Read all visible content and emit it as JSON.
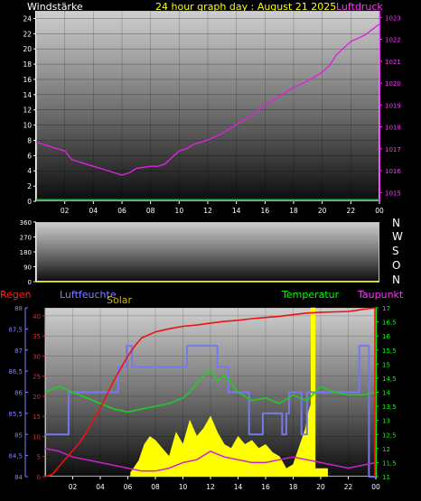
{
  "header": {
    "left_label": "Windstärke",
    "title": "24 hour graph day : August 21 2025",
    "right_label": "Luftdruck"
  },
  "lower_labels": {
    "regen": "Regen",
    "luftfeuchte": "Luftfeuchte",
    "solar": "Solar",
    "temperatur": "Temperatur",
    "taupunkt": "Taupunkt"
  },
  "compass_labels": [
    "N",
    "W",
    "S",
    "O",
    "N"
  ],
  "colors": {
    "wind": "#00cc44",
    "pressure": "#dd22dd",
    "rain": "#ee1111",
    "humidity": "#7777ee",
    "solar": "#ffff00",
    "temperature": "#22cc22",
    "dewpoint": "#cc22cc",
    "axis_magenta": "#ff33ff",
    "axis_green": "#00ff00",
    "axis_blue": "#8080ff",
    "axis_red": "#ff2020"
  },
  "chart_data": [
    {
      "type": "line",
      "x_ticks": [
        "02",
        "04",
        "06",
        "08",
        "10",
        "12",
        "14",
        "16",
        "18",
        "20",
        "22",
        "00"
      ],
      "y_left_ticks": [
        "0",
        "2",
        "4",
        "6",
        "8",
        "10",
        "12",
        "14",
        "16",
        "18",
        "20",
        "22",
        "24"
      ],
      "y_right_ticks": [
        "1015",
        "1016",
        "1017",
        "1018",
        "1019",
        "1020",
        "1021",
        "1022",
        "1023"
      ],
      "ylim_left": [
        0,
        25
      ],
      "ylim_right": [
        1014.6,
        1023.3
      ],
      "series": [
        {
          "axis": "left",
          "x": [
            0,
            24
          ],
          "values": [
            0.2,
            0.2
          ]
        },
        {
          "axis": "right",
          "x": [
            0,
            1,
            2,
            2.5,
            3,
            3.5,
            4,
            5,
            5.5,
            6,
            6.5,
            7,
            8,
            8.5,
            9,
            10,
            10.5,
            11,
            12,
            13,
            14,
            15,
            16,
            17,
            18,
            19,
            20,
            20.5,
            21,
            22,
            23,
            24
          ],
          "values": [
            1017.3,
            1017.1,
            1016.9,
            1016.5,
            1016.4,
            1016.3,
            1016.2,
            1016.0,
            1015.9,
            1015.8,
            1015.9,
            1016.1,
            1016.2,
            1016.2,
            1016.3,
            1016.9,
            1017.0,
            1017.2,
            1017.4,
            1017.7,
            1018.1,
            1018.5,
            1019.0,
            1019.4,
            1019.8,
            1020.1,
            1020.5,
            1020.8,
            1021.3,
            1021.9,
            1022.2,
            1022.7
          ]
        }
      ]
    },
    {
      "type": "line",
      "y_ticks": [
        "0",
        "90",
        "180",
        "270",
        "360"
      ],
      "ylim": [
        0,
        360
      ],
      "series": [
        {
          "x": [
            0,
            24
          ],
          "values": [
            0,
            0
          ]
        }
      ]
    },
    {
      "type": "line",
      "x_ticks": [
        "02",
        "04",
        "06",
        "08",
        "10",
        "12",
        "14",
        "16",
        "18",
        "20",
        "22",
        "00"
      ],
      "y_rain_ticks": [
        "0",
        "5",
        "10",
        "15",
        "20",
        "25",
        "30",
        "35",
        "40"
      ],
      "y_humidity_ticks": [
        "84",
        "84,5",
        "85",
        "85,5",
        "86",
        "86,5",
        "87",
        "87,5",
        "88"
      ],
      "y_temp_ticks": [
        "11",
        "11,5",
        "12",
        "12,5",
        "13",
        "13,5",
        "14",
        "14,5",
        "15",
        "15,5",
        "16",
        "16,5",
        "17"
      ],
      "ylim_rain": [
        0,
        42
      ],
      "ylim_humidity": [
        84,
        88
      ],
      "ylim_temp": [
        11,
        17
      ],
      "series": [
        {
          "name": "Regen",
          "axis": "rain",
          "x": [
            0,
            0.5,
            1,
            1.5,
            2,
            2.5,
            3,
            3.5,
            4,
            4.5,
            5,
            5.5,
            6,
            6.5,
            7,
            8,
            9,
            10,
            11,
            12,
            13,
            14,
            15,
            16,
            17,
            18,
            19,
            20,
            21,
            22,
            22.5,
            23,
            24
          ],
          "values": [
            0,
            0.5,
            2.5,
            4.5,
            6.5,
            8.5,
            11,
            14,
            17,
            20.5,
            24,
            27,
            30,
            32.5,
            34.5,
            36,
            36.8,
            37.4,
            37.7,
            38.2,
            38.6,
            38.9,
            39.3,
            39.6,
            39.9,
            40.3,
            40.7,
            40.9,
            41.0,
            41.1,
            41.3,
            41.6,
            42
          ]
        },
        {
          "name": "Luftfeuchte",
          "axis": "humidity",
          "x": [
            0,
            1.7,
            1.7,
            5.3,
            5.3,
            5.9,
            5.9,
            6.3,
            6.3,
            10.3,
            10.3,
            12.5,
            12.5,
            13.3,
            13.3,
            14.8,
            14.8,
            15.8,
            15.8,
            17.2,
            17.2,
            17.5,
            17.5,
            17.7,
            17.7,
            18.6,
            18.6,
            19.0,
            19.0,
            22.8,
            22.8,
            23.5,
            23.5,
            24
          ],
          "values": [
            85,
            85,
            86,
            86,
            86.6,
            86.6,
            87.1,
            87.1,
            86.6,
            86.6,
            87.1,
            87.1,
            86.6,
            86.6,
            86,
            86,
            85,
            85,
            85.5,
            85.5,
            85,
            85,
            85.5,
            85.5,
            86,
            86,
            85,
            85,
            86,
            86,
            87.1,
            87.1,
            84,
            84
          ]
        },
        {
          "name": "Solar",
          "axis": "rain",
          "x": [
            6.2,
            6.2,
            6.8,
            7.2,
            7.6,
            8,
            8.5,
            9,
            9.5,
            10,
            10.5,
            11,
            11.5,
            12,
            12.5,
            13,
            13.5,
            14,
            14.5,
            15,
            15.5,
            16,
            16.5,
            17,
            17.5,
            18,
            18.3,
            18.6,
            18.9,
            19.1,
            19.3,
            19.3,
            19.6,
            19.6,
            20.5,
            20.5
          ],
          "values": [
            0,
            1,
            4,
            8,
            10,
            9,
            7,
            5,
            11,
            8,
            14,
            10,
            12,
            15,
            11,
            8,
            7,
            10,
            8,
            9,
            7,
            8,
            6,
            5,
            2,
            3,
            6,
            9,
            12,
            16,
            18,
            42,
            42,
            2,
            2,
            0
          ]
        },
        {
          "name": "Temperatur",
          "axis": "temp",
          "x": [
            0,
            1,
            2,
            3,
            4,
            5,
            6,
            7,
            8,
            9,
            10,
            10.5,
            11,
            11.5,
            12,
            12.5,
            13,
            13.5,
            14,
            15,
            16,
            17,
            18,
            19,
            20,
            21,
            22,
            23,
            24
          ],
          "values": [
            14.0,
            14.2,
            14.0,
            13.8,
            13.6,
            13.4,
            13.3,
            13.4,
            13.5,
            13.6,
            13.8,
            14.0,
            14.3,
            14.6,
            14.8,
            14.4,
            14.6,
            14.3,
            14.0,
            13.7,
            13.8,
            13.6,
            13.9,
            13.7,
            14.2,
            14.0,
            13.9,
            13.9,
            14.0
          ]
        },
        {
          "name": "Taupunkt",
          "axis": "temp",
          "x": [
            0,
            1,
            2,
            3,
            4,
            5,
            6,
            7,
            8,
            9,
            10,
            11,
            12,
            13,
            14,
            15,
            16,
            17,
            18,
            19,
            20,
            21,
            22,
            23,
            24
          ],
          "values": [
            12.0,
            11.9,
            11.7,
            11.6,
            11.5,
            11.4,
            11.3,
            11.2,
            11.2,
            11.3,
            11.5,
            11.6,
            11.9,
            11.7,
            11.6,
            11.5,
            11.5,
            11.6,
            11.7,
            11.6,
            11.5,
            11.4,
            11.3,
            11.4,
            11.5
          ]
        }
      ]
    }
  ]
}
